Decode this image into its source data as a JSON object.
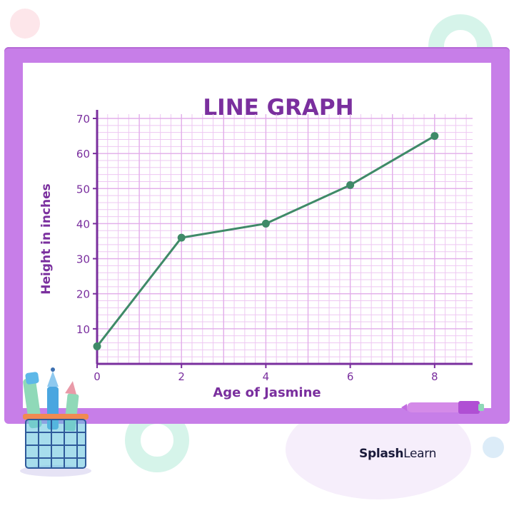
{
  "chart_data": {
    "type": "line",
    "title": "LINE GRAPH",
    "xlabel": "Age of Jasmine",
    "ylabel": "Height in inches",
    "x": [
      0,
      2,
      4,
      6,
      8
    ],
    "y": [
      5,
      36,
      40,
      51,
      65
    ],
    "xlim": [
      0,
      8.9
    ],
    "ylim": [
      0,
      70
    ],
    "x_ticks": [
      "0",
      "2",
      "4",
      "6",
      "8"
    ],
    "y_ticks": [
      "10",
      "20",
      "30",
      "40",
      "50",
      "60",
      "70"
    ],
    "grid": true,
    "line_color": "#3f8a68",
    "accent_color": "#7a2f9e",
    "grid_color": "#eec8f2"
  },
  "brand": {
    "part1": "Splash",
    "part2": "Learn"
  }
}
